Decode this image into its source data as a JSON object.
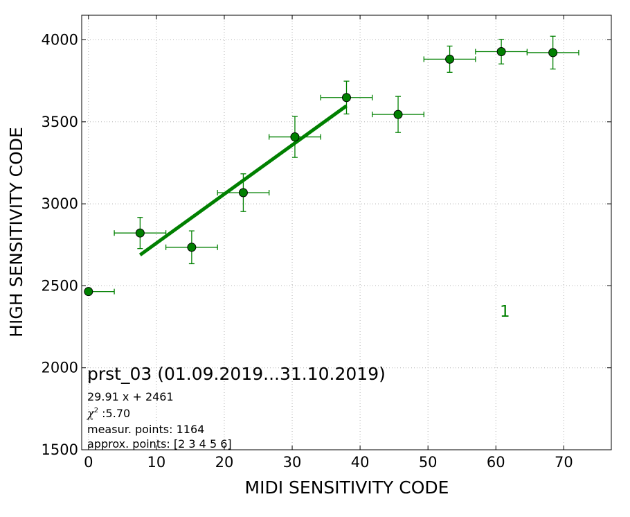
{
  "chart_data": {
    "type": "scatter",
    "xlabel": "MIDI SENSITIVITY CODE",
    "ylabel": "HIGH SENSITIVITY CODE",
    "xlim": [
      -1,
      77
    ],
    "ylim": [
      1500,
      4150
    ],
    "x_ticks": [
      "0",
      "10",
      "20",
      "30",
      "40",
      "50",
      "60",
      "70"
    ],
    "y_ticks": [
      "1500",
      "2000",
      "2500",
      "3000",
      "3500",
      "4000"
    ],
    "grid": true,
    "colors": {
      "series": "#008000",
      "marker_edge": "#000000"
    },
    "series": [
      {
        "points": [
          {
            "x": 0,
            "y": 2465,
            "xerr_low": 0,
            "xerr_high": 3.8,
            "yerr": 20
          },
          {
            "x": 7.6,
            "y": 2822,
            "xerr_low": 3.8,
            "xerr_high": 3.8,
            "yerr": 95
          },
          {
            "x": 15.2,
            "y": 2735,
            "xerr_low": 3.8,
            "xerr_high": 3.8,
            "yerr": 100
          },
          {
            "x": 22.8,
            "y": 3068,
            "xerr_low": 3.8,
            "xerr_high": 3.8,
            "yerr": 115
          },
          {
            "x": 30.4,
            "y": 3408,
            "xerr_low": 3.8,
            "xerr_high": 3.8,
            "yerr": 125
          },
          {
            "x": 38.0,
            "y": 3648,
            "xerr_low": 3.8,
            "xerr_high": 3.8,
            "yerr": 100
          },
          {
            "x": 45.6,
            "y": 3545,
            "xerr_low": 3.8,
            "xerr_high": 3.8,
            "yerr": 110
          },
          {
            "x": 53.2,
            "y": 3882,
            "xerr_low": 3.8,
            "xerr_high": 3.8,
            "yerr": 80
          },
          {
            "x": 60.8,
            "y": 3928,
            "xerr_low": 3.8,
            "xerr_high": 3.8,
            "yerr": 75
          },
          {
            "x": 68.4,
            "y": 3922,
            "xerr_low": 3.8,
            "xerr_high": 3.8,
            "yerr": 100
          }
        ]
      }
    ],
    "fit_line": {
      "slope": 29.91,
      "intercept": 2461,
      "x_start": 7.6,
      "x_end": 38.0
    },
    "annotations": {
      "series_number": "1",
      "title": "prst_03 (01.09.2019...31.10.2019)",
      "equation": "29.91 x + 2461",
      "chi_symbol": "χ",
      "chi_exp": "2",
      "chi_value": " :5.70",
      "measur_points": "measur. points: 1164",
      "approx_points": "approx. points: [2 3 4 5 6]"
    }
  }
}
